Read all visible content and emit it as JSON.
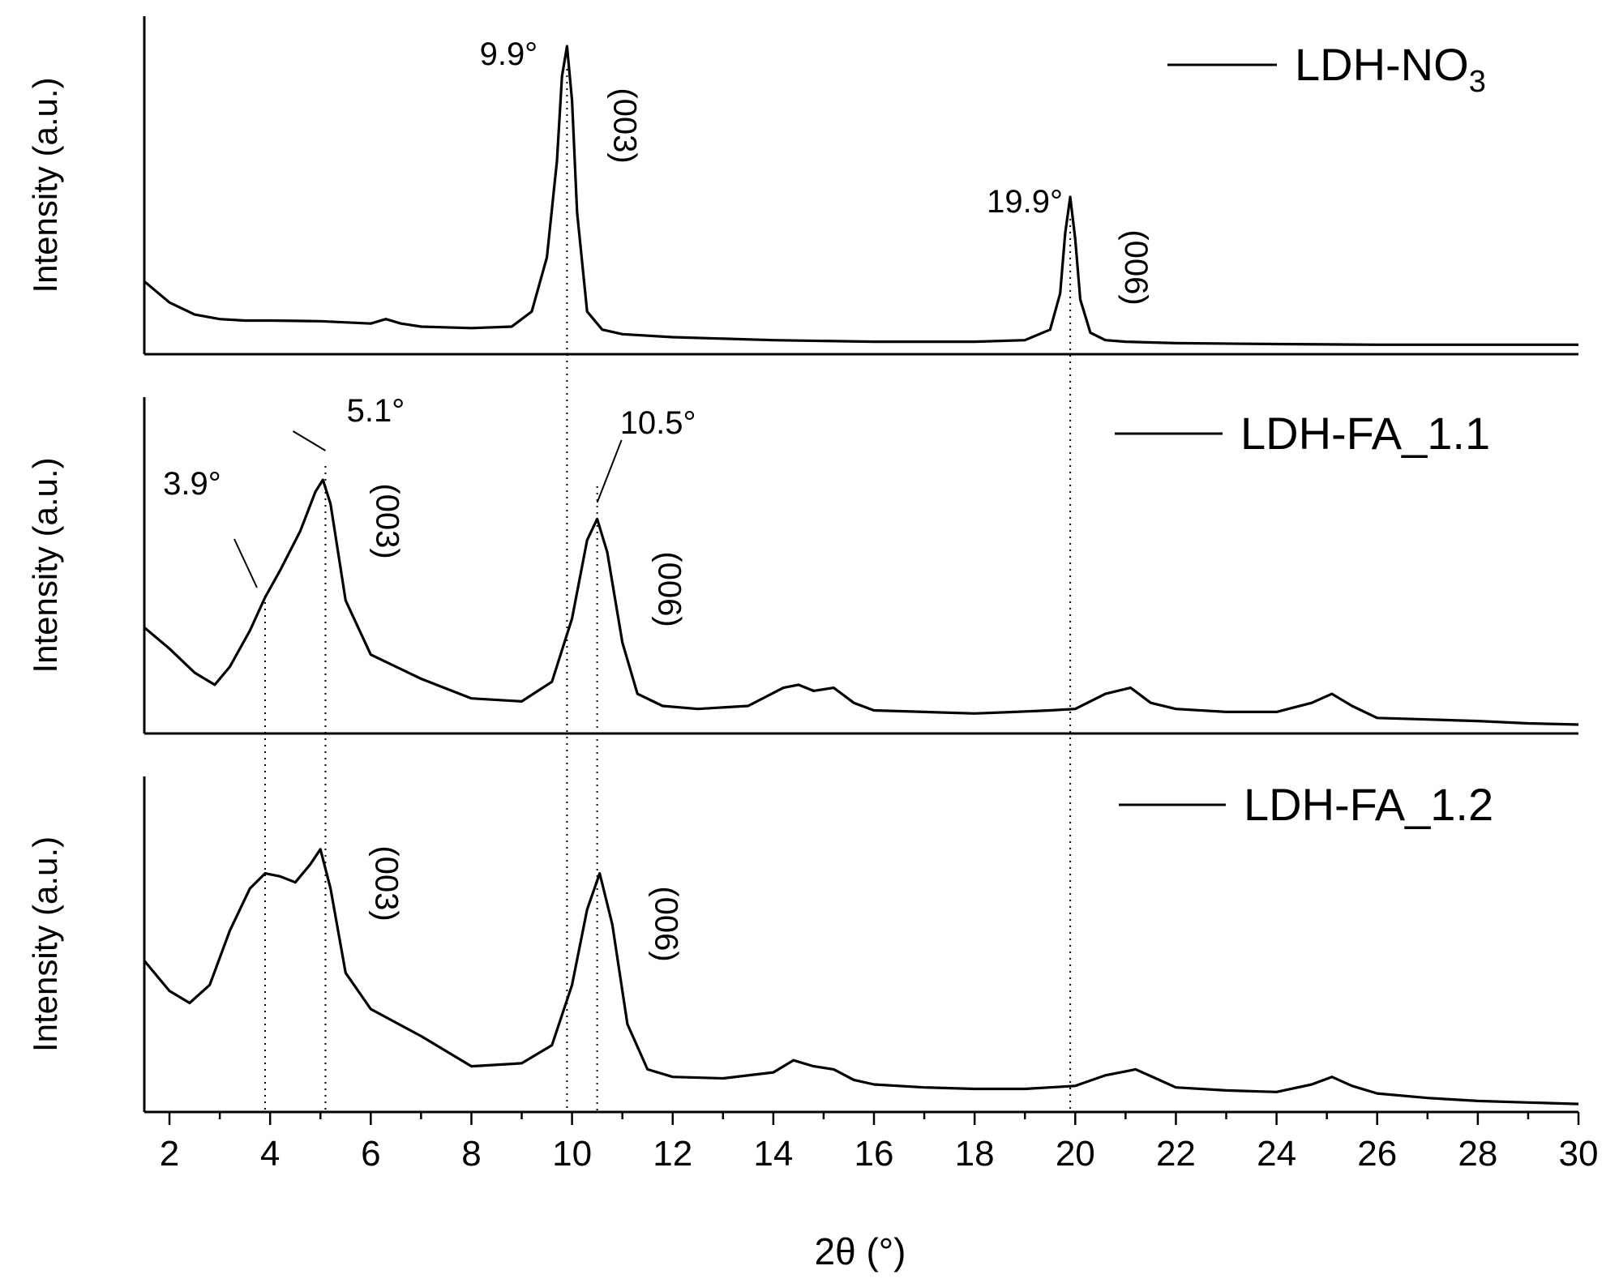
{
  "chart_data": {
    "type": "line",
    "xlabel": "2θ (°)",
    "xlim": [
      1.5,
      30
    ],
    "x_ticks": [
      2,
      4,
      6,
      8,
      10,
      12,
      14,
      16,
      18,
      20,
      22,
      24,
      26,
      28,
      30
    ],
    "ylabel": "Intensity (a.u.)",
    "panels": [
      {
        "legend": {
          "main": "LDH-NO",
          "sub": "3"
        },
        "series": {
          "x": [
            1.5,
            2.0,
            2.5,
            3.0,
            3.5,
            4.0,
            5.0,
            6.0,
            6.3,
            6.6,
            7.0,
            8.0,
            8.8,
            9.2,
            9.5,
            9.7,
            9.8,
            9.9,
            10.0,
            10.1,
            10.3,
            10.6,
            11.0,
            12.0,
            14.0,
            16.0,
            18.0,
            19.0,
            19.5,
            19.7,
            19.8,
            19.9,
            20.0,
            20.1,
            20.3,
            20.6,
            21.0,
            22.0,
            24.0,
            26.0,
            28.0,
            30.0
          ],
          "y": [
            0.22,
            0.15,
            0.11,
            0.095,
            0.09,
            0.09,
            0.088,
            0.08,
            0.095,
            0.08,
            0.07,
            0.065,
            0.07,
            0.12,
            0.3,
            0.62,
            0.9,
            1.0,
            0.82,
            0.45,
            0.12,
            0.06,
            0.045,
            0.035,
            0.025,
            0.02,
            0.02,
            0.025,
            0.06,
            0.18,
            0.38,
            0.5,
            0.36,
            0.16,
            0.05,
            0.025,
            0.02,
            0.015,
            0.012,
            0.01,
            0.01,
            0.01
          ]
        },
        "annotations": [
          {
            "text": "9.9°",
            "x": 9.9
          },
          {
            "text": "19.9°",
            "x": 19.9
          }
        ],
        "hkl": [
          {
            "text": "(003)",
            "x": 9.9
          },
          {
            "text": "(006)",
            "x": 19.9
          }
        ]
      },
      {
        "legend": {
          "main": "LDH-FA_1.1",
          "sub": ""
        },
        "series": {
          "x": [
            1.5,
            2.0,
            2.5,
            2.9,
            3.2,
            3.6,
            3.9,
            4.2,
            4.6,
            4.9,
            5.05,
            5.2,
            5.5,
            6.0,
            7.0,
            8.0,
            9.0,
            9.6,
            10.0,
            10.3,
            10.5,
            10.7,
            11.0,
            11.3,
            11.8,
            12.5,
            13.5,
            14.2,
            14.5,
            14.8,
            15.2,
            15.6,
            16.0,
            17.0,
            18.0,
            18.8,
            19.5,
            20.0,
            20.6,
            21.1,
            21.5,
            22.0,
            23.0,
            24.0,
            24.7,
            25.1,
            25.5,
            26.0,
            27.0,
            28.0,
            29.0,
            30.0
          ],
          "y": [
            0.33,
            0.26,
            0.18,
            0.14,
            0.2,
            0.32,
            0.43,
            0.52,
            0.65,
            0.78,
            0.82,
            0.74,
            0.42,
            0.24,
            0.16,
            0.095,
            0.085,
            0.15,
            0.36,
            0.62,
            0.69,
            0.58,
            0.28,
            0.11,
            0.07,
            0.06,
            0.07,
            0.13,
            0.14,
            0.12,
            0.13,
            0.08,
            0.055,
            0.05,
            0.045,
            0.05,
            0.055,
            0.06,
            0.11,
            0.13,
            0.08,
            0.06,
            0.05,
            0.05,
            0.08,
            0.11,
            0.07,
            0.03,
            0.025,
            0.02,
            0.012,
            0.008
          ]
        },
        "annotations": [
          {
            "text": "3.9°",
            "x": 3.9
          },
          {
            "text": "5.1°",
            "x": 5.1
          },
          {
            "text": "10.5°",
            "x": 10.5
          }
        ],
        "hkl": [
          {
            "text": "(003)",
            "x": 5.1
          },
          {
            "text": "(006)",
            "x": 10.5
          }
        ]
      },
      {
        "legend": {
          "main": "LDH-FA_1.2",
          "sub": ""
        },
        "series": {
          "x": [
            1.5,
            2.0,
            2.4,
            2.8,
            3.2,
            3.6,
            3.9,
            4.2,
            4.5,
            4.8,
            5.0,
            5.2,
            5.5,
            6.0,
            7.0,
            8.0,
            9.0,
            9.6,
            10.0,
            10.3,
            10.55,
            10.8,
            11.1,
            11.5,
            12.0,
            13.0,
            14.0,
            14.4,
            14.8,
            15.2,
            15.6,
            16.0,
            17.0,
            18.0,
            19.0,
            19.5,
            20.0,
            20.6,
            21.2,
            21.6,
            22.0,
            23.0,
            24.0,
            24.7,
            25.1,
            25.5,
            26.0,
            27.0,
            28.0,
            29.0,
            30.0
          ],
          "y": [
            0.48,
            0.38,
            0.34,
            0.4,
            0.58,
            0.72,
            0.77,
            0.76,
            0.74,
            0.8,
            0.85,
            0.72,
            0.44,
            0.32,
            0.23,
            0.13,
            0.14,
            0.2,
            0.4,
            0.65,
            0.77,
            0.6,
            0.27,
            0.12,
            0.095,
            0.09,
            0.11,
            0.15,
            0.13,
            0.12,
            0.085,
            0.07,
            0.06,
            0.055,
            0.055,
            0.06,
            0.065,
            0.1,
            0.12,
            0.09,
            0.06,
            0.05,
            0.045,
            0.07,
            0.095,
            0.065,
            0.04,
            0.025,
            0.015,
            0.01,
            0.005
          ]
        },
        "annotations": [],
        "hkl": [
          {
            "text": "(003)",
            "x": 5.1
          },
          {
            "text": "(006)",
            "x": 10.5
          }
        ]
      }
    ],
    "guide_lines": [
      3.9,
      5.1,
      9.9,
      10.5,
      19.9
    ],
    "grid": false
  }
}
